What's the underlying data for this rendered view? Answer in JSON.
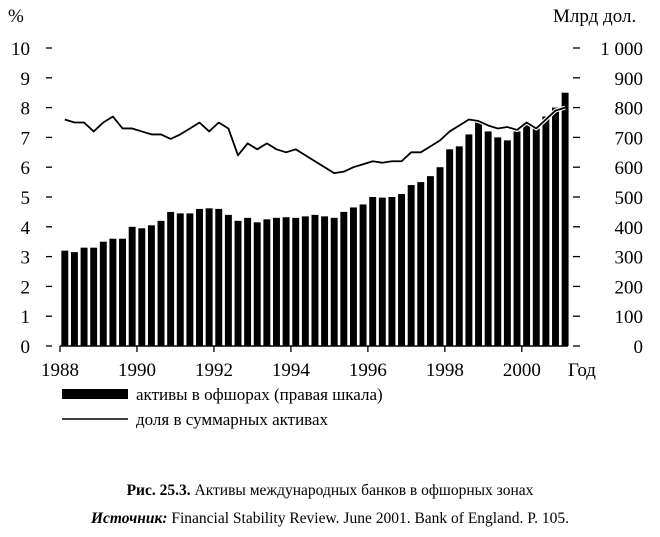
{
  "chart_data": {
    "type": "bar+line",
    "left_axis": {
      "label": "%",
      "ticks": [
        "0",
        "1",
        "2",
        "3",
        "4",
        "5",
        "6",
        "7",
        "8",
        "9",
        "10"
      ],
      "range": [
        0,
        10
      ]
    },
    "right_axis": {
      "label": "Млрд дол.",
      "ticks": [
        "0",
        "100",
        "200",
        "300",
        "400",
        "500",
        "600",
        "700",
        "800",
        "900",
        "1 000"
      ],
      "range": [
        0,
        1000
      ]
    },
    "x_axis": {
      "label": "Год",
      "ticks": [
        "1988",
        "1990",
        "1992",
        "1994",
        "1996",
        "1998",
        "2000"
      ],
      "range": [
        1988,
        2001.2
      ]
    },
    "series": [
      {
        "name": "активы в офшорах (правая шкала)",
        "kind": "bar",
        "axis": "right",
        "x": [
          1988.0,
          1988.25,
          1988.5,
          1988.75,
          1989.0,
          1989.25,
          1989.5,
          1989.75,
          1990.0,
          1990.25,
          1990.5,
          1990.75,
          1991.0,
          1991.25,
          1991.5,
          1991.75,
          1992.0,
          1992.25,
          1992.5,
          1992.75,
          1993.0,
          1993.25,
          1993.5,
          1993.75,
          1994.0,
          1994.25,
          1994.5,
          1994.75,
          1995.0,
          1995.25,
          1995.5,
          1995.75,
          1996.0,
          1996.25,
          1996.5,
          1996.75,
          1997.0,
          1997.25,
          1997.5,
          1997.75,
          1998.0,
          1998.25,
          1998.5,
          1998.75,
          1999.0,
          1999.25,
          1999.5,
          1999.75,
          2000.0,
          2000.25,
          2000.5,
          2000.75,
          2001.0
        ],
        "values": [
          320,
          315,
          330,
          330,
          350,
          360,
          360,
          400,
          395,
          405,
          420,
          450,
          445,
          445,
          460,
          462,
          460,
          440,
          420,
          430,
          415,
          425,
          430,
          432,
          430,
          435,
          440,
          435,
          430,
          450,
          465,
          475,
          500,
          498,
          500,
          510,
          540,
          550,
          570,
          600,
          660,
          670,
          710,
          750,
          720,
          700,
          690,
          720,
          750,
          730,
          770,
          800,
          850
        ]
      },
      {
        "name": "доля в суммарных активах",
        "kind": "line",
        "axis": "left",
        "x": [
          1988.0,
          1988.25,
          1988.5,
          1988.75,
          1989.0,
          1989.25,
          1989.5,
          1989.75,
          1990.0,
          1990.25,
          1990.5,
          1990.75,
          1991.0,
          1991.25,
          1991.5,
          1991.75,
          1992.0,
          1992.25,
          1992.5,
          1992.75,
          1993.0,
          1993.25,
          1993.5,
          1993.75,
          1994.0,
          1994.25,
          1994.5,
          1994.75,
          1995.0,
          1995.25,
          1995.5,
          1995.75,
          1996.0,
          1996.25,
          1996.5,
          1996.75,
          1997.0,
          1997.25,
          1997.5,
          1997.75,
          1998.0,
          1998.25,
          1998.5,
          1998.75,
          1999.0,
          1999.25,
          1999.5,
          1999.75,
          2000.0,
          2000.25,
          2000.5,
          2000.75,
          2001.0
        ],
        "values": [
          7.6,
          7.5,
          7.5,
          7.2,
          7.5,
          7.7,
          7.3,
          7.3,
          7.2,
          7.1,
          7.1,
          6.95,
          7.1,
          7.3,
          7.5,
          7.2,
          7.5,
          7.3,
          6.4,
          6.8,
          6.6,
          6.8,
          6.6,
          6.5,
          6.6,
          6.4,
          6.2,
          6.0,
          5.8,
          5.85,
          6.0,
          6.1,
          6.2,
          6.15,
          6.2,
          6.2,
          6.5,
          6.5,
          6.7,
          6.9,
          7.2,
          7.4,
          7.6,
          7.55,
          7.4,
          7.3,
          7.35,
          7.25,
          7.5,
          7.3,
          7.6,
          7.9,
          8.0
        ]
      }
    ]
  },
  "legend": {
    "bars": "активы в офшорах (правая шкала)",
    "line": "доля в суммарных активах"
  },
  "caption": {
    "fig_number": "Рис. 25.3.",
    "fig_title": "Активы международных банков в офшорных зонах",
    "source_label": "Источник:",
    "source_text": "Financial Stability Review. June 2001. Bank of England. P. 105."
  }
}
